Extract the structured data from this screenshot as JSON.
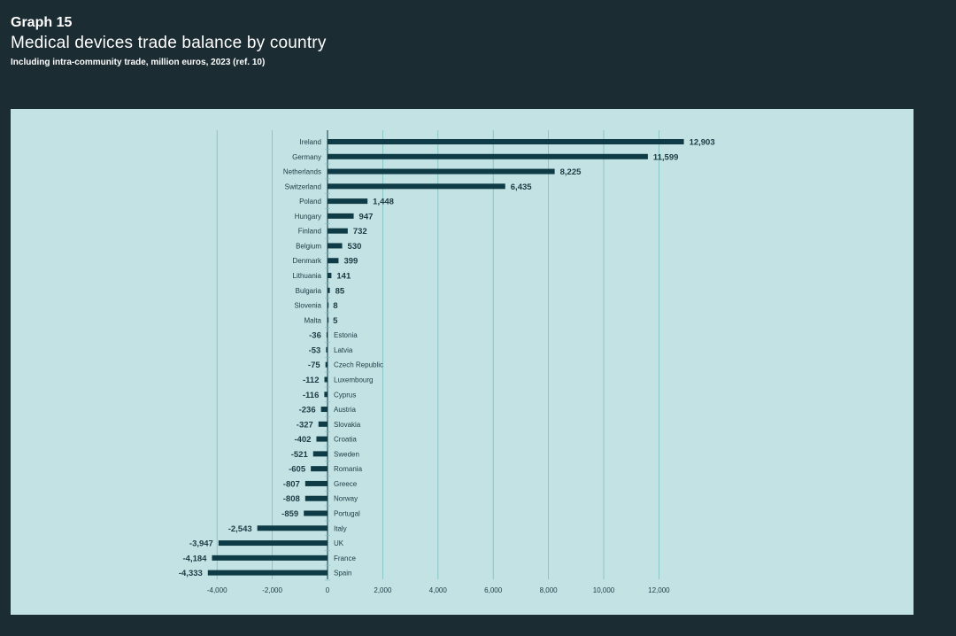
{
  "header": {
    "graph_label": "Graph 15",
    "title": "Medical devices trade balance by country",
    "subtitle": "Including intra-community trade, million euros, 2023 (ref. 10)"
  },
  "colors": {
    "background": "#1c2c33",
    "panel": "#c2e2e3",
    "bar": "#0f3b46",
    "grid": "#7fbfbf",
    "text": "#1c3a44"
  },
  "chart_data": {
    "type": "bar",
    "orientation": "horizontal",
    "title": "Medical devices trade balance by country",
    "subtitle": "Including intra-community trade, million euros, 2023 (ref. 10)",
    "xlim": [
      -4000,
      12000
    ],
    "xticks": [
      -4000,
      -2000,
      0,
      2000,
      4000,
      6000,
      8000,
      10000,
      12000
    ],
    "xtick_labels": [
      "-4,000",
      "-2,000",
      "0",
      "2,000",
      "4,000",
      "6,000",
      "8,000",
      "10,000",
      "12,000"
    ],
    "grid": "vertical",
    "categories": [
      "Ireland",
      "Germany",
      "Netherlands",
      "Switzerland",
      "Poland",
      "Hungary",
      "Finland",
      "Belgium",
      "Denmark",
      "Lithuania",
      "Bulgaria",
      "Slovenia",
      "Malta",
      "Estonia",
      "Latvia",
      "Czech Republic",
      "Luxembourg",
      "Cyprus",
      "Austria",
      "Slovakia",
      "Croatia",
      "Sweden",
      "Romania",
      "Greece",
      "Norway",
      "Portugal",
      "Italy",
      "UK",
      "France",
      "Spain"
    ],
    "values": [
      12903,
      11599,
      8225,
      6435,
      1448,
      947,
      732,
      530,
      399,
      141,
      85,
      8,
      5,
      -36,
      -53,
      -75,
      -112,
      -116,
      -236,
      -327,
      -402,
      -521,
      -605,
      -807,
      -808,
      -859,
      -2543,
      -3947,
      -4184,
      -4333
    ],
    "value_labels": [
      "12,903",
      "11,599",
      "8,225",
      "6,435",
      "1,448",
      "947",
      "732",
      "530",
      "399",
      "141",
      "85",
      "8",
      "5",
      "-36",
      "-53",
      "-75",
      "-112",
      "-116",
      "-236",
      "-327",
      "-402",
      "-521",
      "-605",
      "-807",
      "-808",
      "-859",
      "-2,543",
      "-3,947",
      "-4,184",
      "-4,333"
    ]
  }
}
